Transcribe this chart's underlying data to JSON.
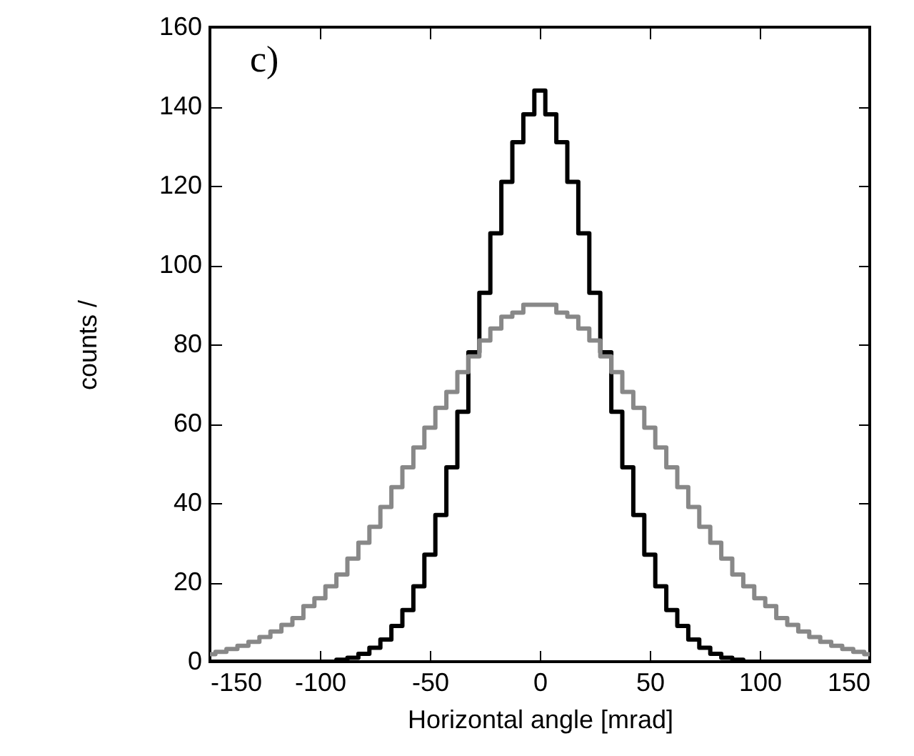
{
  "chart_data": {
    "type": "step",
    "xlabel": "Horizontal angle [mrad]",
    "ylabel": "counts /",
    "annotations": [
      "c)"
    ],
    "x": [
      -150,
      -145,
      -140,
      -135,
      -130,
      -125,
      -120,
      -115,
      -110,
      -105,
      -100,
      -95,
      -90,
      -85,
      -80,
      -75,
      -70,
      -65,
      -60,
      -55,
      -50,
      -45,
      -40,
      -35,
      -30,
      -25,
      -20,
      -15,
      -10,
      -5,
      0,
      5,
      10,
      15,
      20,
      25,
      30,
      35,
      40,
      45,
      50,
      55,
      60,
      65,
      70,
      75,
      80,
      85,
      90,
      95,
      100,
      105,
      110,
      115,
      120,
      125,
      130,
      135,
      140,
      145,
      150
    ],
    "series": [
      {
        "color": "#000000",
        "values": [
          0,
          0,
          0,
          0,
          0,
          0,
          0,
          0,
          0,
          0,
          0,
          0,
          0.5,
          1,
          2,
          3.5,
          5.6,
          9,
          13,
          19,
          27,
          37,
          49,
          63,
          78,
          93,
          108,
          121,
          131,
          138,
          144,
          138,
          131,
          121,
          108,
          93,
          78,
          63,
          49,
          37,
          27,
          19,
          13,
          9,
          5.6,
          3.5,
          2,
          1,
          0.5,
          0,
          0,
          0,
          0,
          0,
          0,
          0,
          0,
          0,
          0,
          0,
          0
        ]
      },
      {
        "color": "#888888",
        "values": [
          1.9,
          2.5,
          3.2,
          4,
          5,
          6.2,
          7.6,
          9.3,
          11,
          14,
          16,
          19,
          22,
          26,
          30,
          34,
          39,
          44,
          49,
          54,
          59,
          64,
          68,
          73,
          77,
          81,
          84,
          87,
          88,
          90,
          90,
          90,
          88,
          87,
          84,
          81,
          77,
          73,
          68,
          64,
          59,
          54,
          49,
          44,
          39,
          34,
          30,
          26,
          22,
          19,
          16,
          14,
          11,
          9.3,
          7.6,
          6.2,
          5,
          4,
          3.2,
          2.5,
          1.9
        ]
      }
    ],
    "xlim": [
      -150,
      150
    ],
    "xticks": [
      -150,
      -100,
      -50,
      0,
      50,
      100,
      150
    ],
    "ylim": [
      0,
      160
    ],
    "yticks": [
      0,
      20,
      40,
      60,
      80,
      100,
      120,
      140,
      160
    ],
    "grid": false
  }
}
